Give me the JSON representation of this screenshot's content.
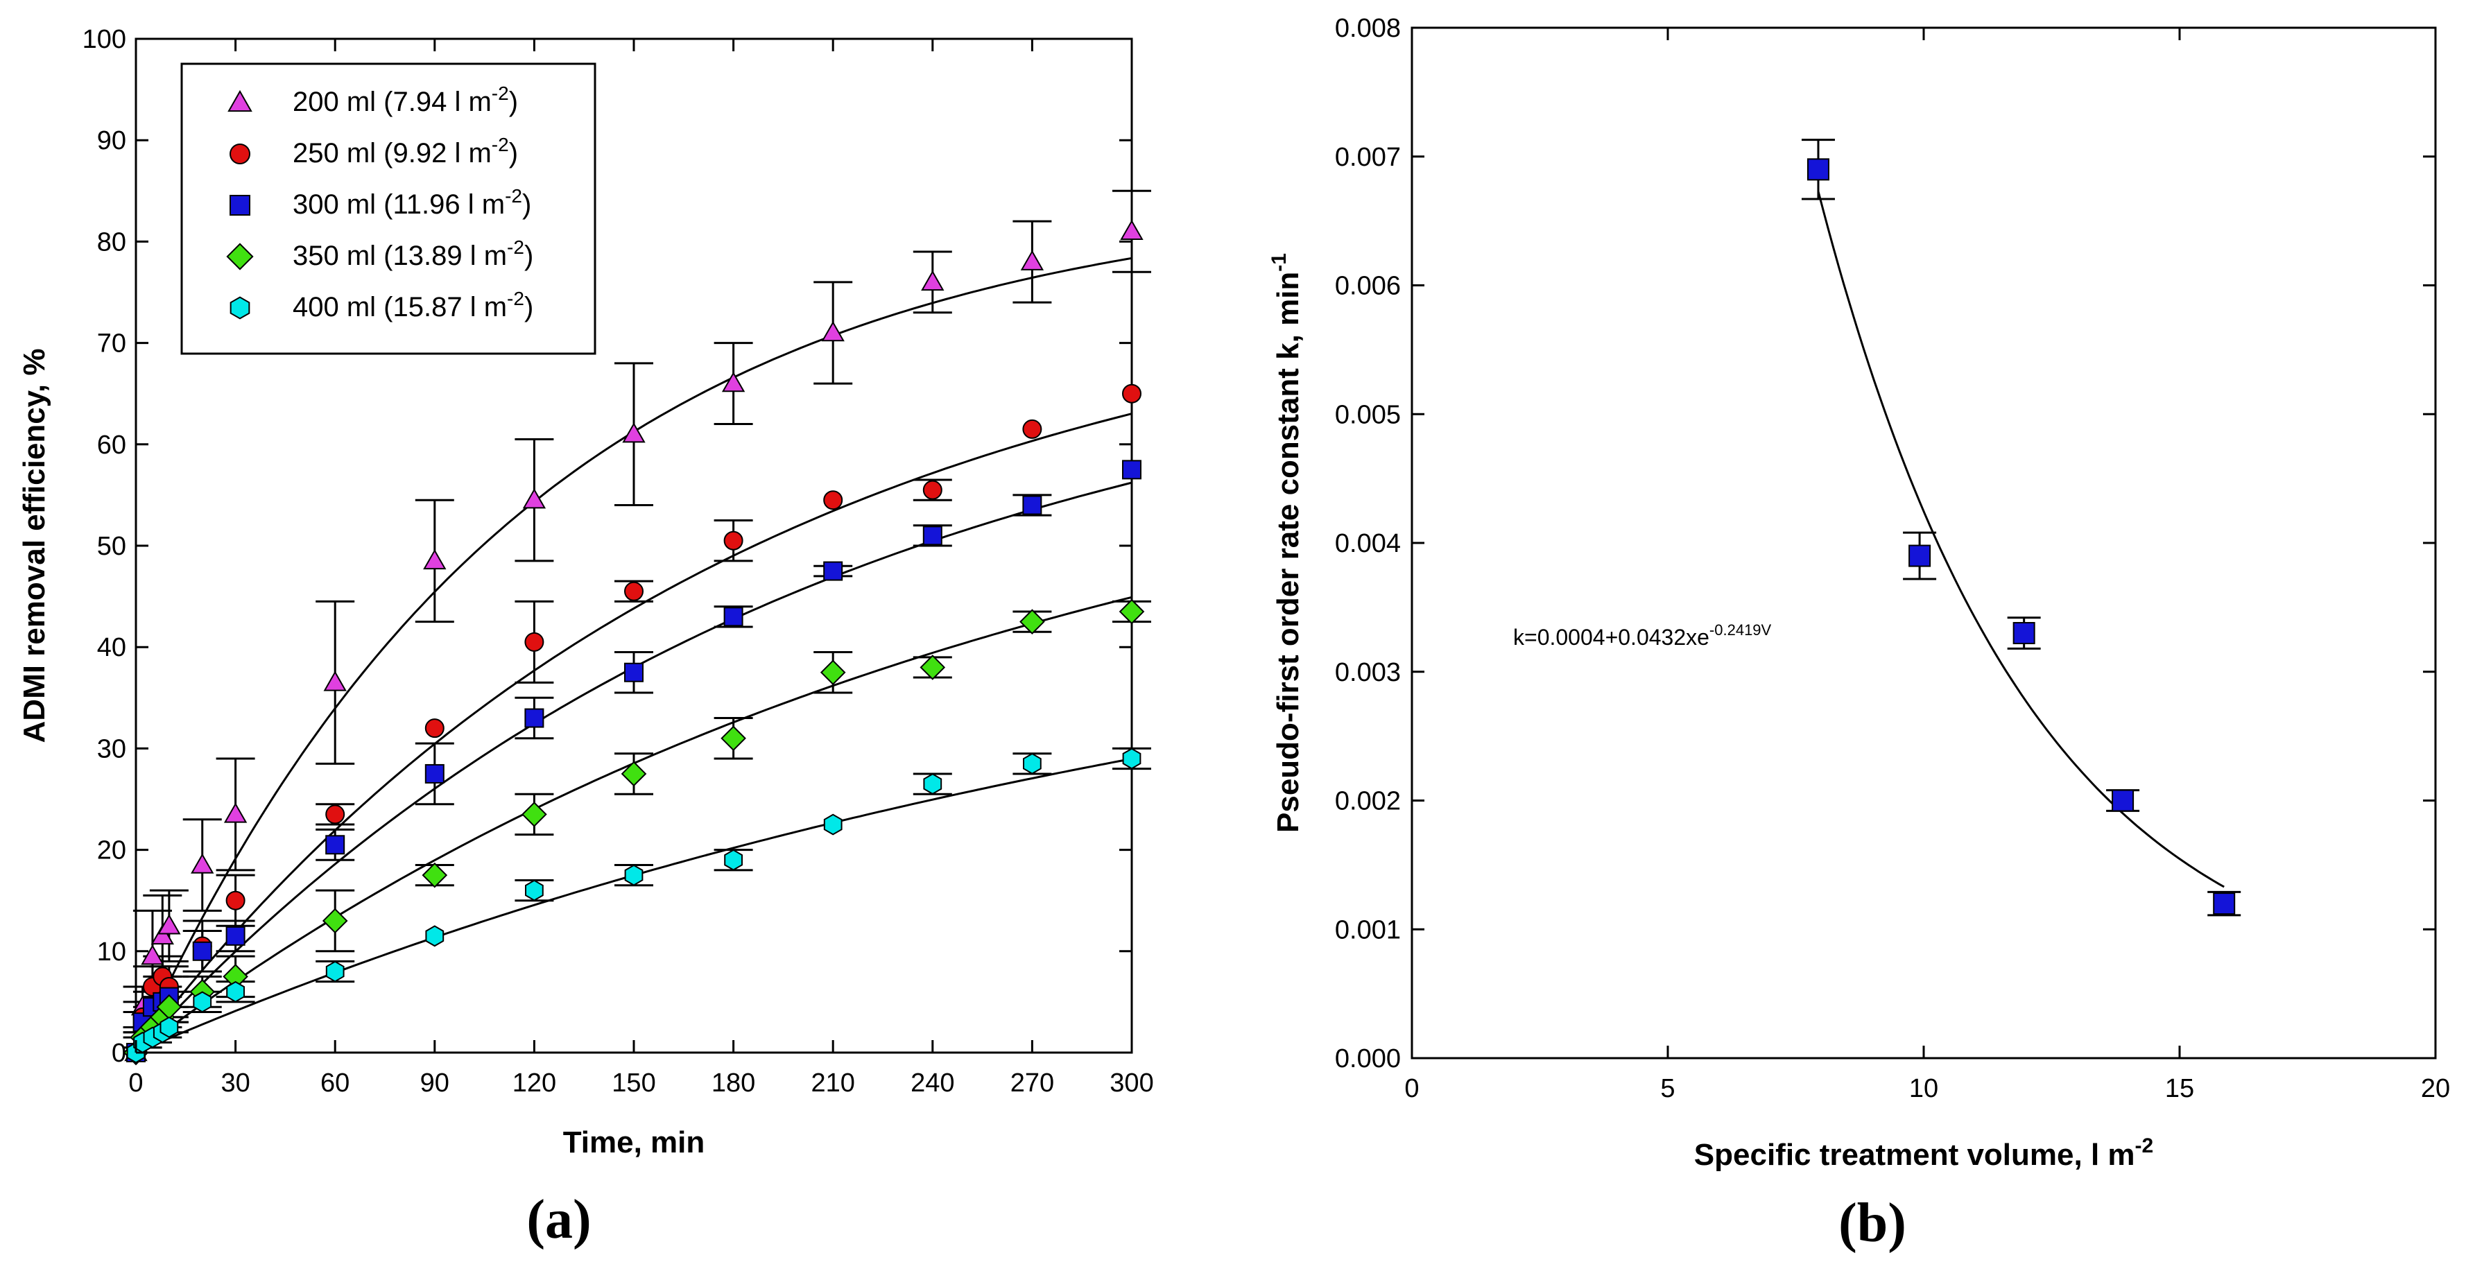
{
  "chart_data": [
    {
      "type": "scatter",
      "panel_label": "(a)",
      "xlabel": "Time, min",
      "ylabel": "ADMI removal efficiency, %",
      "xlim": [
        0,
        300
      ],
      "ylim": [
        0,
        100
      ],
      "xticks": [
        0,
        30,
        60,
        90,
        120,
        150,
        180,
        210,
        240,
        270,
        300
      ],
      "yticks": [
        0,
        10,
        20,
        30,
        40,
        50,
        60,
        70,
        80,
        90,
        100
      ],
      "legend_position": "top-left",
      "series": [
        {
          "name": "200 ml (7.94 l m-2)",
          "legend": {
            "main": "200 ml (7.94 l m",
            "sup": "-2",
            "close": ")"
          },
          "marker": "triangle",
          "color": "#e040e0",
          "x": [
            0,
            2,
            5,
            8,
            10,
            20,
            30,
            60,
            90,
            120,
            150,
            180,
            210,
            240,
            270,
            300
          ],
          "y": [
            0,
            4.5,
            9.5,
            11.5,
            12.5,
            18.5,
            23.5,
            36.5,
            48.5,
            54.5,
            61,
            66,
            71,
            76,
            78,
            81
          ],
          "err": [
            0,
            2,
            4.5,
            4,
            3.5,
            4.5,
            5.5,
            8,
            6,
            6,
            7,
            4,
            5,
            3,
            4,
            4
          ],
          "fit_max": 85,
          "fit_k": 0.0085
        },
        {
          "name": "250 ml (9.92 l m-2)",
          "legend": {
            "main": "250 ml (9.92 l m",
            "sup": "-2",
            "close": ")"
          },
          "marker": "circle",
          "color": "#e01010",
          "x": [
            0,
            2,
            5,
            8,
            10,
            20,
            30,
            60,
            90,
            120,
            150,
            180,
            210,
            240,
            270,
            300
          ],
          "y": [
            0,
            3.5,
            6.5,
            7.5,
            6.5,
            10.5,
            15,
            23.5,
            32,
            40.5,
            45.5,
            50.5,
            54.5,
            55.5,
            61.5,
            65
          ],
          "err": [
            0,
            1.5,
            2,
            2,
            2,
            2.5,
            2.5,
            1,
            0,
            4,
            1,
            2,
            0,
            1,
            0,
            0
          ],
          "fit_max": 78,
          "fit_k": 0.0055
        },
        {
          "name": "300 ml (11.96 l m-2)",
          "legend": {
            "main": "300 ml (11.96 l m",
            "sup": "-2",
            "close": ")"
          },
          "marker": "square",
          "color": "#1414d8",
          "x": [
            0,
            2,
            5,
            8,
            10,
            20,
            30,
            60,
            90,
            120,
            150,
            180,
            210,
            240,
            270,
            300
          ],
          "y": [
            0,
            3,
            4.5,
            5,
            5.5,
            10,
            11.5,
            20.5,
            27.5,
            33,
            37.5,
            43,
            47.5,
            51,
            54,
            57.5
          ],
          "err": [
            0,
            1,
            1.5,
            1.5,
            2,
            2,
            1.5,
            1.5,
            3,
            2,
            2,
            1,
            0.5,
            1,
            1,
            0
          ],
          "fit_max": 73,
          "fit_k": 0.0049
        },
        {
          "name": "350 ml (13.89 l m-2)",
          "legend": {
            "main": "350 ml (13.89 l m",
            "sup": "-2",
            "close": ")"
          },
          "marker": "diamond",
          "color": "#40e010",
          "x": [
            0,
            2,
            5,
            8,
            10,
            20,
            30,
            60,
            90,
            120,
            150,
            180,
            210,
            240,
            270,
            300
          ],
          "y": [
            0,
            1.5,
            2.5,
            3.5,
            4.5,
            6,
            7.5,
            13,
            17.5,
            23.5,
            27.5,
            31,
            37.5,
            38,
            42.5,
            43.5
          ],
          "err": [
            0,
            1,
            1,
            1,
            1.5,
            1.5,
            2,
            3,
            1,
            2,
            2,
            2,
            2,
            1,
            1,
            1
          ],
          "fit_max": 67,
          "fit_k": 0.0037
        },
        {
          "name": "400 ml (15.87 l m-2)",
          "legend": {
            "main": "400 ml (15.87 l m",
            "sup": "-2",
            "close": ")"
          },
          "marker": "hexagon",
          "color": "#00e8e8",
          "x": [
            0,
            2,
            5,
            8,
            10,
            20,
            30,
            60,
            90,
            120,
            150,
            180,
            210,
            240,
            270,
            300
          ],
          "y": [
            0,
            1,
            1.5,
            2,
            2.5,
            5,
            6,
            8,
            11.5,
            16,
            17.5,
            19,
            22.5,
            26.5,
            28.5,
            29
          ],
          "err": [
            0,
            0.5,
            0.5,
            0.5,
            0.5,
            1,
            1,
            1,
            0,
            1,
            1,
            1,
            0,
            1,
            1,
            1
          ],
          "fit_max": 51,
          "fit_k": 0.0028
        }
      ]
    },
    {
      "type": "scatter",
      "panel_label": "(b)",
      "xlabel": {
        "main": "Specific treatment volume, l m",
        "sup": "-2"
      },
      "ylabel": {
        "main": "Pseudo-first order rate constant k, min",
        "sup": "-1"
      },
      "xlim": [
        0,
        20
      ],
      "ylim": [
        0,
        0.008
      ],
      "xticks": [
        0,
        5,
        10,
        15,
        20
      ],
      "yticks": [
        0.0,
        0.001,
        0.002,
        0.003,
        0.004,
        0.005,
        0.006,
        0.007,
        0.008
      ],
      "ytick_labels": [
        "0.000",
        "0.001",
        "0.002",
        "0.003",
        "0.004",
        "0.005",
        "0.006",
        "0.007",
        "0.008"
      ],
      "annotation": {
        "main": "k=0.0004+0.0432xe",
        "sup": "-0.2419V"
      },
      "fit": {
        "a": 0.0004,
        "b": 0.0432,
        "c": -0.2419,
        "x_from": 7.94,
        "x_to": 15.87
      },
      "series": [
        {
          "name": "k",
          "marker": "square",
          "color": "#1414d8",
          "x": [
            7.94,
            9.92,
            11.96,
            13.89,
            15.87
          ],
          "y": [
            0.0069,
            0.0039,
            0.0033,
            0.002,
            0.0012
          ],
          "err": [
            0.00023,
            0.00018,
            0.00012,
            8e-05,
            9e-05
          ]
        }
      ]
    }
  ]
}
